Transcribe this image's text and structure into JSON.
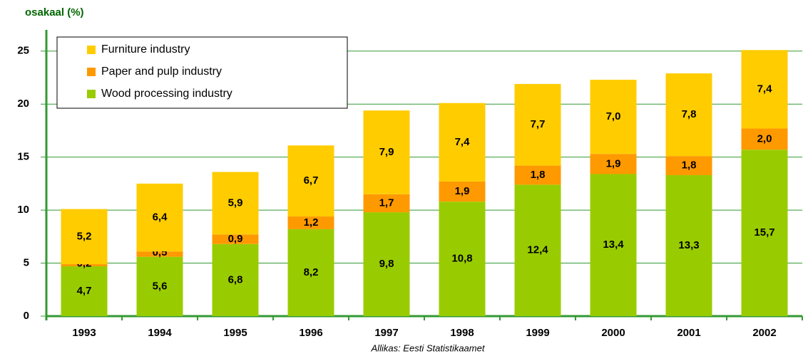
{
  "chart_data": {
    "type": "stacked_bar",
    "y_axis_label": "osakaal (%)",
    "source": "Allikas: Eesti Statistikaamet",
    "categories": [
      "1993",
      "1994",
      "1995",
      "1996",
      "1997",
      "1998",
      "1999",
      "2000",
      "2001",
      "2002"
    ],
    "series": [
      {
        "name": "Wood processing industry",
        "color": "#99cc00",
        "values": [
          4.7,
          5.6,
          6.8,
          8.2,
          9.8,
          10.8,
          12.4,
          13.4,
          13.3,
          15.7
        ],
        "value_labels": [
          "4,7",
          "5,6",
          "6,8",
          "8,2",
          "9,8",
          "10,8",
          "12,4",
          "13,4",
          "13,3",
          "15,7"
        ]
      },
      {
        "name": "Paper and pulp industry",
        "color": "#ff9900",
        "values": [
          0.2,
          0.5,
          0.9,
          1.2,
          1.7,
          1.9,
          1.8,
          1.9,
          1.8,
          2.0
        ],
        "value_labels": [
          "0,2",
          "0,5",
          "0,9",
          "1,2",
          "1,7",
          "1,9",
          "1,8",
          "1,9",
          "1,8",
          "2,0"
        ]
      },
      {
        "name": "Furniture industry",
        "color": "#ffcc00",
        "values": [
          5.2,
          6.4,
          5.9,
          6.7,
          7.9,
          7.4,
          7.7,
          7.0,
          7.8,
          7.4
        ],
        "value_labels": [
          "5,2",
          "6,4",
          "5,9",
          "6,7",
          "7,9",
          "7,4",
          "7,7",
          "7,0",
          "7,8",
          "7,4"
        ]
      }
    ],
    "ylim": [
      0,
      27
    ],
    "yticks": [
      0,
      5,
      10,
      15,
      20,
      25
    ],
    "grid": true,
    "legend": "top-left"
  }
}
